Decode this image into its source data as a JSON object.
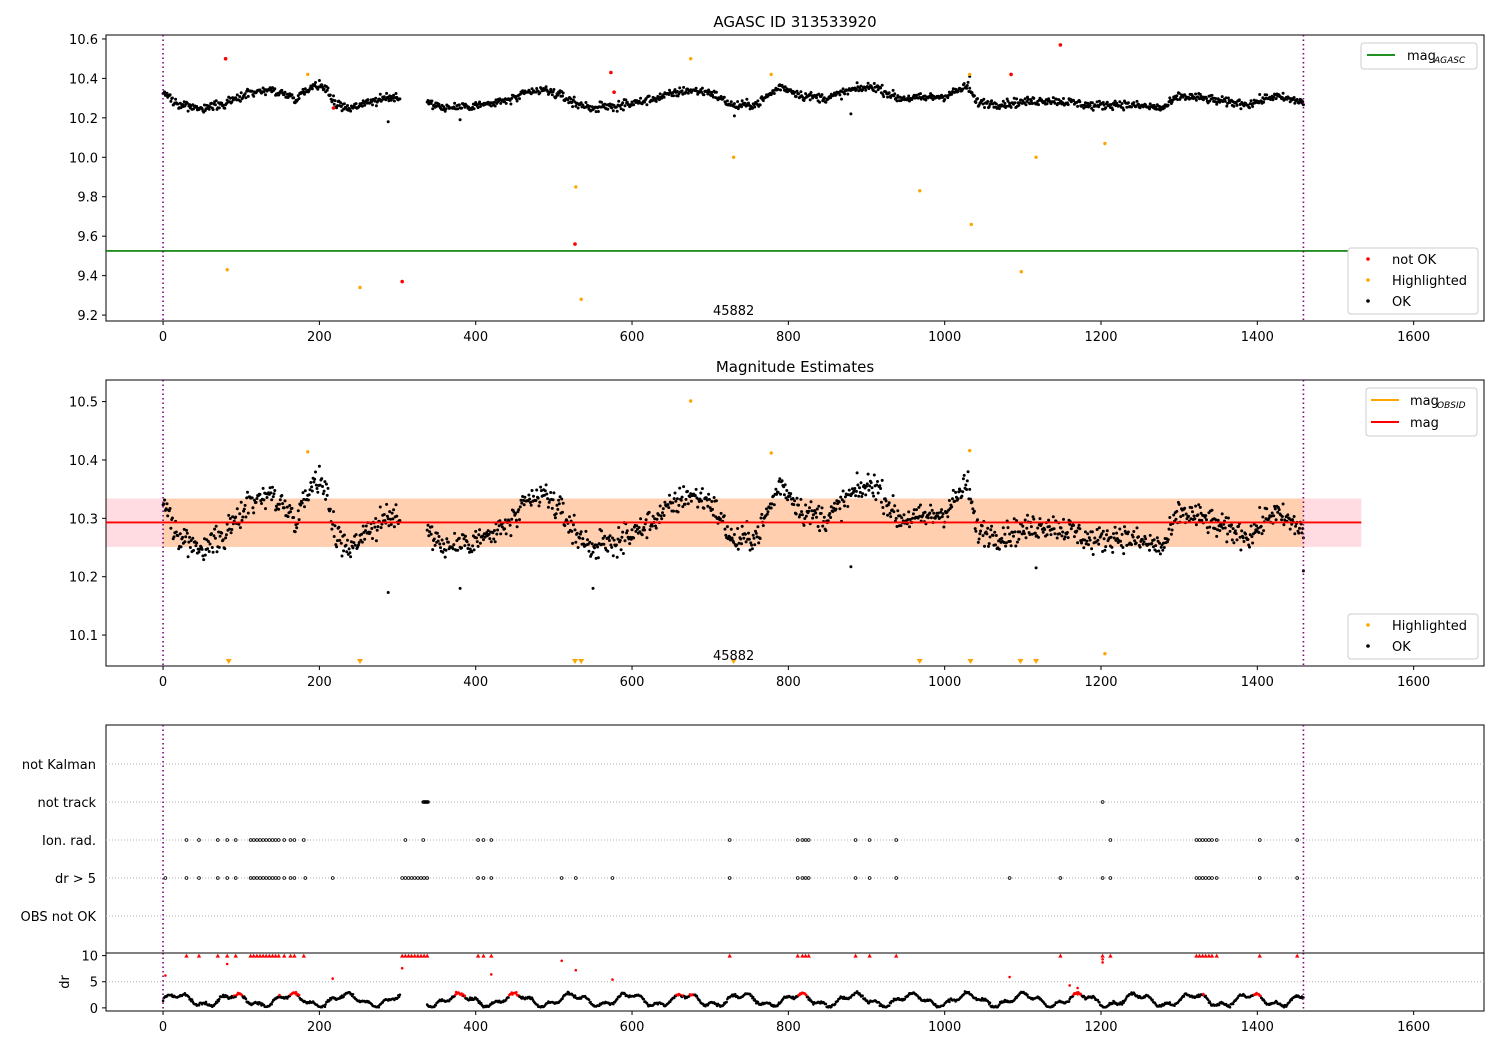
{
  "chart_data": [
    {
      "id": "top",
      "type": "scatter",
      "title": "AGASC ID 313533920",
      "xlim": [
        -73,
        1690
      ],
      "ylim": [
        9.17,
        10.62
      ],
      "xticks": [
        0,
        200,
        400,
        600,
        800,
        1000,
        1200,
        1400,
        1600
      ],
      "yticks": [
        9.2,
        9.4,
        9.6,
        9.8,
        10.0,
        10.2,
        10.4,
        10.6
      ],
      "ytick_labels": [
        "9.2",
        "9.4",
        "9.6",
        "9.8",
        "10.0",
        "10.2",
        "10.4",
        "10.6"
      ],
      "vlines": [
        0,
        1459
      ],
      "annotation": {
        "text": "45882",
        "x": 730,
        "y": 9.19
      },
      "hline": {
        "name": "mag_AGASC",
        "y": 9.525,
        "xrange": [
          -73,
          1530
        ],
        "color": "#008000"
      },
      "legend_lines": [
        {
          "label": "mag",
          "sub": "AGASC",
          "color": "#008000"
        }
      ],
      "legend_points": [
        {
          "label": "not OK",
          "color": "#ff0000"
        },
        {
          "label": "Highlighted",
          "color": "#ffa500"
        },
        {
          "label": "OK",
          "color": "#000000"
        }
      ],
      "trend": {
        "x": [
          0,
          20,
          50,
          80,
          110,
          140,
          170,
          190,
          205,
          220,
          240,
          260,
          290,
          310,
          340,
          360,
          390,
          420,
          450,
          470,
          490,
          510,
          530,
          550,
          580,
          610,
          640,
          670,
          700,
          730,
          760,
          790,
          820,
          850,
          880,
          910,
          940,
          970,
          1000,
          1030,
          1040,
          1070,
          1100,
          1130,
          1160,
          1190,
          1220,
          1250,
          1280,
          1300,
          1330,
          1360,
          1390,
          1420,
          1459
        ],
        "y": [
          10.33,
          10.27,
          10.25,
          10.27,
          10.33,
          10.34,
          10.3,
          10.36,
          10.37,
          10.27,
          10.25,
          10.28,
          10.3,
          10.31,
          10.28,
          10.25,
          10.26,
          10.27,
          10.3,
          10.33,
          10.34,
          10.31,
          10.27,
          10.25,
          10.26,
          10.28,
          10.31,
          10.34,
          10.33,
          10.26,
          10.27,
          10.36,
          10.31,
          10.3,
          10.34,
          10.36,
          10.3,
          10.3,
          10.31,
          10.36,
          10.28,
          10.27,
          10.28,
          10.29,
          10.28,
          10.26,
          10.27,
          10.26,
          10.25,
          10.31,
          10.3,
          10.28,
          10.27,
          10.31,
          10.28
        ]
      },
      "highlighted": [
        [
          82,
          9.43
        ],
        [
          185,
          10.42
        ],
        [
          252,
          9.34
        ],
        [
          528,
          9.85
        ],
        [
          535,
          9.28
        ],
        [
          675,
          10.5
        ],
        [
          730,
          10.0
        ],
        [
          778,
          10.42
        ],
        [
          968,
          9.83
        ],
        [
          1032,
          10.42
        ],
        [
          1034,
          9.66
        ],
        [
          1098,
          9.42
        ],
        [
          1117,
          10.0
        ],
        [
          1205,
          10.07
        ]
      ],
      "not_ok": [
        [
          80,
          10.5
        ],
        [
          218,
          10.25
        ],
        [
          306,
          9.37
        ],
        [
          527,
          9.56
        ],
        [
          573,
          10.43
        ],
        [
          577,
          10.33
        ],
        [
          1085,
          10.42
        ],
        [
          1148,
          10.57
        ]
      ],
      "outliers": [
        [
          288,
          10.18
        ],
        [
          380,
          10.19
        ],
        [
          731,
          10.21
        ],
        [
          880,
          10.22
        ],
        [
          1032,
          10.41
        ]
      ]
    },
    {
      "id": "mid",
      "type": "scatter",
      "title": "Magnitude Estimates",
      "xlim": [
        -73,
        1690
      ],
      "ylim": [
        10.047,
        10.537
      ],
      "xticks": [
        0,
        200,
        400,
        600,
        800,
        1000,
        1200,
        1400,
        1600
      ],
      "yticks": [
        10.1,
        10.2,
        10.3,
        10.4,
        10.5
      ],
      "ytick_labels": [
        "10.1",
        "10.2",
        "10.3",
        "10.4",
        "10.5"
      ],
      "vlines": [
        0,
        1459
      ],
      "annotation": {
        "text": "45882",
        "x": 730,
        "y": 10.064
      },
      "mag_line": {
        "name": "mag",
        "y": 10.293,
        "xrange": [
          -73,
          1533
        ],
        "color": "#ff0000"
      },
      "mag_band": {
        "y0": 10.251,
        "y1": 10.334,
        "xrange": [
          -73,
          1533
        ],
        "color": "#ffc0cb"
      },
      "obsid_band": {
        "y0": 10.251,
        "y1": 10.334,
        "xrange": [
          0,
          1459
        ],
        "color": "#ffa500"
      },
      "legend_lines": [
        {
          "label": "mag",
          "sub": "OBSID",
          "color": "#ffa500"
        },
        {
          "label": "mag",
          "sub": "",
          "color": "#ff0000"
        }
      ],
      "legend_points": [
        {
          "label": "Highlighted",
          "color": "#ffa500"
        },
        {
          "label": "OK",
          "color": "#000000"
        }
      ],
      "highlighted": [
        [
          185,
          10.414
        ],
        [
          675,
          10.501
        ],
        [
          778,
          10.412
        ],
        [
          1032,
          10.416
        ],
        [
          1205,
          10.068
        ]
      ],
      "offscale_markers_x": [
        84,
        252,
        527,
        535,
        730,
        968,
        1033,
        1097,
        1117
      ],
      "outliers": [
        [
          288,
          10.173
        ],
        [
          380,
          10.18
        ],
        [
          550,
          10.18
        ],
        [
          880,
          10.217
        ],
        [
          1117,
          10.215
        ],
        [
          1459,
          10.21
        ]
      ]
    },
    {
      "id": "flags",
      "type": "scatter",
      "xlim": [
        -73,
        1690
      ],
      "categories": [
        "not Kalman",
        "not track",
        "Ion. rad.",
        "dr > 5",
        "OBS not OK"
      ],
      "vlines": [
        0,
        1459
      ],
      "flag_points": {
        "not track": [
          333,
          334,
          335,
          336,
          337,
          338,
          339,
          1202
        ],
        "Ion. rad.": [
          30,
          46,
          70,
          82,
          93,
          112,
          116,
          120,
          124,
          128,
          132,
          136,
          140,
          144,
          148,
          155,
          163,
          168,
          180,
          310,
          333,
          403,
          410,
          420,
          725,
          812,
          818,
          822,
          826,
          886,
          904,
          938,
          1212,
          1322,
          1326,
          1330,
          1334,
          1338,
          1342,
          1348,
          1403,
          1451
        ],
        "dr > 5": [
          3,
          30,
          46,
          70,
          82,
          93,
          112,
          116,
          120,
          124,
          128,
          132,
          136,
          140,
          144,
          148,
          155,
          163,
          168,
          182,
          217,
          306,
          310,
          314,
          318,
          322,
          326,
          330,
          334,
          338,
          403,
          410,
          420,
          510,
          528,
          575,
          725,
          812,
          818,
          822,
          826,
          886,
          904,
          938,
          1083,
          1148,
          1202,
          1212,
          1322,
          1326,
          1330,
          1334,
          1338,
          1342,
          1348,
          1403,
          1451
        ]
      }
    },
    {
      "id": "dr",
      "type": "scatter",
      "ylabel": "dr",
      "xlim": [
        -73,
        1690
      ],
      "ylim": [
        -0.6,
        10.5
      ],
      "xticks": [
        0,
        200,
        400,
        600,
        800,
        1000,
        1200,
        1400,
        1600
      ],
      "yticks": [
        0,
        5,
        10
      ],
      "ytick_labels": [
        "0",
        "5",
        "10"
      ],
      "vlines": [
        0,
        1459
      ],
      "red_capped_x": [
        30,
        46,
        70,
        82,
        93,
        112,
        116,
        120,
        124,
        128,
        132,
        136,
        140,
        144,
        148,
        155,
        163,
        168,
        180,
        306,
        310,
        314,
        318,
        322,
        326,
        330,
        334,
        338,
        403,
        410,
        420,
        725,
        812,
        818,
        822,
        826,
        886,
        904,
        938,
        1148,
        1202,
        1212,
        1322,
        1326,
        1330,
        1334,
        1338,
        1342,
        1348,
        1403,
        1451
      ],
      "red_extra": [
        [
          3,
          6.2
        ],
        [
          82,
          8.4
        ],
        [
          217,
          5.6
        ],
        [
          306,
          7.6
        ],
        [
          420,
          6.4
        ],
        [
          510,
          9.0
        ],
        [
          528,
          7.2
        ],
        [
          575,
          5.4
        ],
        [
          1083,
          5.9
        ],
        [
          1202,
          9.3
        ],
        [
          1202,
          8.7
        ],
        [
          1160,
          4.3
        ],
        [
          1170,
          3.8
        ]
      ]
    }
  ]
}
